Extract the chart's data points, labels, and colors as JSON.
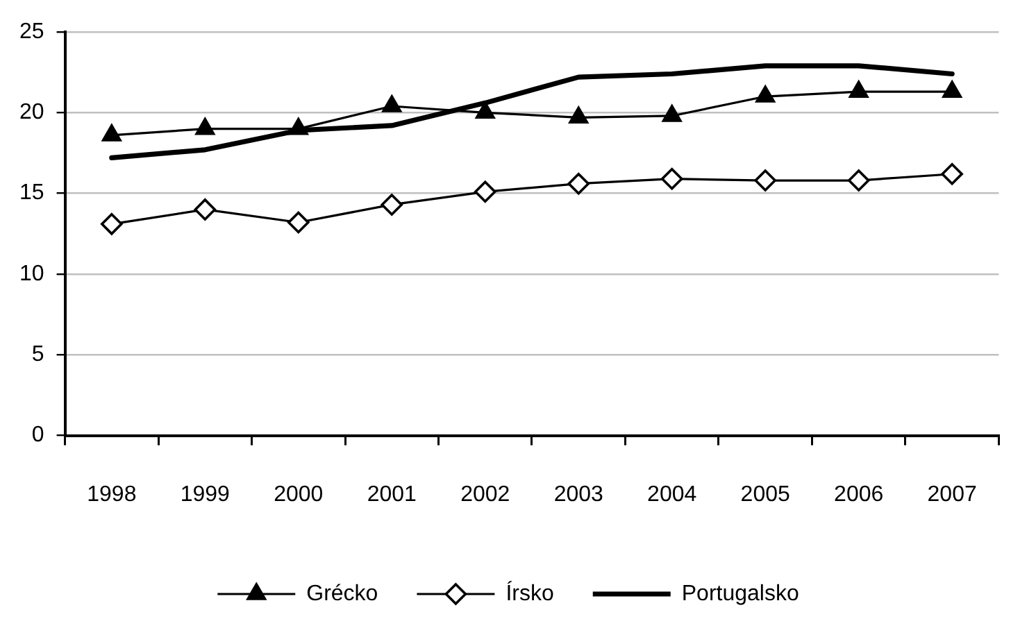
{
  "chart_data": {
    "type": "line",
    "categories": [
      "1998",
      "1999",
      "2000",
      "2001",
      "2002",
      "2003",
      "2004",
      "2005",
      "2006",
      "2007"
    ],
    "series": [
      {
        "name": "Grécko",
        "color": "#000000",
        "marker": "triangle",
        "values": [
          18.6,
          19.0,
          19.0,
          20.4,
          20.0,
          19.7,
          19.8,
          21.0,
          21.3,
          21.3
        ]
      },
      {
        "name": "Írsko",
        "color": "#000000",
        "marker": "diamond",
        "values": [
          13.1,
          14.0,
          13.2,
          14.3,
          15.1,
          15.6,
          15.9,
          15.8,
          15.8,
          16.2
        ]
      },
      {
        "name": "Portugalsko",
        "color": "#000000",
        "marker": "none",
        "values": [
          17.2,
          17.7,
          18.9,
          19.2,
          20.6,
          22.2,
          22.4,
          22.9,
          22.9,
          22.4
        ]
      }
    ],
    "ylim": [
      0,
      25
    ],
    "yticks": [
      0,
      5,
      10,
      15,
      20,
      25
    ],
    "grid": "y",
    "legend": "bottom"
  }
}
